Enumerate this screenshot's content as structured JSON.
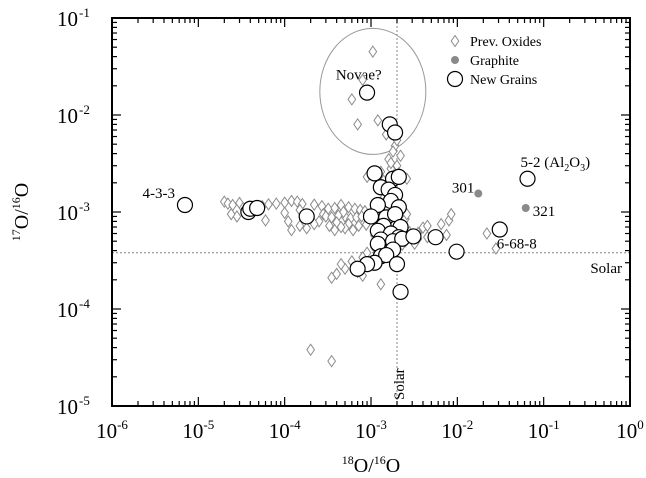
{
  "chart_data": {
    "type": "scatter",
    "x_scale": "log",
    "y_scale": "log",
    "xlim": [
      1e-06,
      1
    ],
    "ylim": [
      1e-05,
      0.1
    ],
    "xlabel": {
      "sup1": "18",
      "mid": "O/",
      "sup2": "16",
      "end": "O"
    },
    "ylabel": {
      "sup1": "17",
      "mid": "O/",
      "sup2": "16",
      "end": "O"
    },
    "x_ticks": [
      {
        "value": 1e-06,
        "base": "10",
        "exp": "-6"
      },
      {
        "value": 1e-05,
        "base": "10",
        "exp": "-5"
      },
      {
        "value": 0.0001,
        "base": "10",
        "exp": "-4"
      },
      {
        "value": 0.001,
        "base": "10",
        "exp": "-3"
      },
      {
        "value": 0.01,
        "base": "10",
        "exp": "-2"
      },
      {
        "value": 0.1,
        "base": "10",
        "exp": "-1"
      },
      {
        "value": 1,
        "base": "10",
        "exp": "0"
      }
    ],
    "y_ticks": [
      {
        "value": 1e-05,
        "base": "10",
        "exp": "-5"
      },
      {
        "value": 0.0001,
        "base": "10",
        "exp": "-4"
      },
      {
        "value": 0.001,
        "base": "10",
        "exp": "-3"
      },
      {
        "value": 0.01,
        "base": "10",
        "exp": "-2"
      },
      {
        "value": 0.1,
        "base": "10",
        "exp": "-1"
      }
    ],
    "solar": {
      "x": 0.002,
      "y": 0.00038,
      "x_label": "Solar",
      "y_label": "Solar"
    },
    "novae_region": {
      "label": "Novae?",
      "cx": 0.00105,
      "cy": 0.0175
    },
    "legend": [
      {
        "key": "prev",
        "label": "Prev. Oxides",
        "marker": "diamond"
      },
      {
        "key": "graphite",
        "label": "Graphite",
        "marker": "dot"
      },
      {
        "key": "new",
        "label": "New Grains",
        "marker": "circle"
      }
    ],
    "series": [
      {
        "key": "new",
        "name": "New Grains",
        "points": [
          [
            7e-06,
            0.00118
          ],
          [
            3.8e-05,
            0.001
          ],
          [
            4e-05,
            0.00108
          ],
          [
            4.8e-05,
            0.0011
          ],
          [
            0.00018,
            0.0009
          ],
          [
            0.0009,
            0.017
          ],
          [
            0.00165,
            0.008
          ],
          [
            0.0019,
            0.0066
          ],
          [
            0.0011,
            0.0025
          ],
          [
            0.0018,
            0.0022
          ],
          [
            0.0021,
            0.0023
          ],
          [
            0.0013,
            0.0018
          ],
          [
            0.0016,
            0.0017
          ],
          [
            0.0019,
            0.0015
          ],
          [
            0.0017,
            0.0013
          ],
          [
            0.0012,
            0.00118
          ],
          [
            0.0021,
            0.00112
          ],
          [
            0.001,
            0.0009
          ],
          [
            0.0015,
            0.00088
          ],
          [
            0.0019,
            0.00095
          ],
          [
            0.0014,
            0.00072
          ],
          [
            0.0022,
            0.0007
          ],
          [
            0.0012,
            0.00064
          ],
          [
            0.0017,
            0.0006
          ],
          [
            0.0021,
            0.00055
          ],
          [
            0.0013,
            0.00052
          ],
          [
            0.0018,
            0.0005
          ],
          [
            0.0012,
            0.00047
          ],
          [
            0.0023,
            0.00053
          ],
          [
            0.0031,
            0.00056
          ],
          [
            0.0056,
            0.00055
          ],
          [
            0.0018,
            0.00041
          ],
          [
            0.0013,
            0.00035
          ],
          [
            0.0015,
            0.00036
          ],
          [
            0.0011,
            0.0003
          ],
          [
            0.0009,
            0.00029
          ],
          [
            0.0007,
            0.00026
          ],
          [
            0.002,
            0.00029
          ],
          [
            0.0022,
            0.00015
          ],
          [
            0.0098,
            0.00039
          ],
          [
            0.031,
            0.00066
          ],
          [
            0.065,
            0.0022
          ]
        ]
      },
      {
        "key": "graphite",
        "name": "Graphite",
        "points": [
          [
            0.0175,
            0.00155
          ],
          [
            0.062,
            0.0011
          ]
        ]
      },
      {
        "key": "prev",
        "name": "Prev. Oxides",
        "points": [
          [
            0.00105,
            0.045
          ],
          [
            0.0006,
            0.0145
          ],
          [
            0.0008,
            0.023
          ],
          [
            0.0007,
            0.008
          ],
          [
            0.0012,
            0.0088
          ],
          [
            0.0015,
            0.0063
          ],
          [
            0.0019,
            0.0048
          ],
          [
            0.002,
            0.0055
          ],
          [
            0.0016,
            0.0035
          ],
          [
            0.002,
            0.003
          ],
          [
            0.0017,
            0.0028
          ],
          [
            0.0013,
            0.0026
          ],
          [
            0.0009,
            0.0023
          ],
          [
            0.0021,
            0.0025
          ],
          [
            0.0026,
            0.0022
          ],
          [
            0.0014,
            0.0021
          ],
          [
            0.0018,
            0.0019
          ],
          [
            0.0017,
            0.0032
          ],
          [
            0.0022,
            0.0038
          ],
          [
            0.0018,
            0.0042
          ],
          [
            2e-05,
            0.00128
          ],
          [
            2.2e-05,
            0.00122
          ],
          [
            2.5e-05,
            0.00118
          ],
          [
            3e-05,
            0.00124
          ],
          [
            3.3e-05,
            0.0011
          ],
          [
            2.8e-05,
            0.0009
          ],
          [
            2.4e-05,
            0.00095
          ],
          [
            5.5e-05,
            0.00115
          ],
          [
            6.5e-05,
            0.0012
          ],
          [
            8e-05,
            0.00122
          ],
          [
            0.0001,
            0.00125
          ],
          [
            0.00012,
            0.0013
          ],
          [
            0.00014,
            0.00128
          ],
          [
            0.00016,
            0.00121
          ],
          [
            0.00022,
            0.00119
          ],
          [
            0.00027,
            0.00115
          ],
          [
            0.00032,
            0.00108
          ],
          [
            0.00038,
            0.0011
          ],
          [
            0.00045,
            0.00118
          ],
          [
            0.00055,
            0.00112
          ],
          [
            0.00065,
            0.00108
          ],
          [
            0.00075,
            0.00105
          ],
          [
            0.00085,
            0.00102
          ],
          [
            0.00028,
            0.00095
          ],
          [
            0.0003,
            0.0009
          ],
          [
            0.00035,
            0.00088
          ],
          [
            0.00042,
            0.00092
          ],
          [
            0.0005,
            0.0009
          ],
          [
            0.00058,
            0.00086
          ],
          [
            0.00068,
            0.00088
          ],
          [
            0.00078,
            0.0009
          ],
          [
            0.0002,
            0.00085
          ],
          [
            0.00025,
            0.0008
          ],
          [
            0.0004,
            0.00078
          ],
          [
            0.00055,
            0.00075
          ],
          [
            0.00072,
            0.00072
          ],
          [
            0.00088,
            0.00074
          ],
          [
            0.0005,
            0.00068
          ],
          [
            0.00062,
            0.00065
          ],
          [
            0.00045,
            0.0007
          ],
          [
            0.0001,
            0.00098
          ],
          [
            0.00011,
            0.0008
          ],
          [
            6e-05,
            0.00082
          ],
          [
            0.00015,
            0.00105
          ],
          [
            0.00048,
            0.001
          ],
          [
            0.0012,
            0.00098
          ],
          [
            0.0014,
            0.0009
          ],
          [
            0.0016,
            0.0008
          ],
          [
            0.0015,
            0.0012
          ],
          [
            0.0014,
            0.0014
          ],
          [
            0.0016,
            0.0016
          ],
          [
            0.0019,
            0.0013
          ],
          [
            0.0015,
            0.0011
          ],
          [
            0.0018,
            0.001
          ],
          [
            0.0022,
            0.0009
          ],
          [
            0.0025,
            0.00085
          ],
          [
            0.0026,
            0.00095
          ],
          [
            0.0021,
            0.00078
          ],
          [
            0.0012,
            0.00068
          ],
          [
            0.0013,
            0.0006
          ],
          [
            0.0016,
            0.00064
          ],
          [
            0.0011,
            0.00057
          ],
          [
            0.0014,
            0.00055
          ],
          [
            0.0015,
            0.0005
          ],
          [
            0.0013,
            0.00046
          ],
          [
            0.0015,
            0.00044
          ],
          [
            0.0019,
            0.00046
          ],
          [
            0.0011,
            0.00043
          ],
          [
            0.0012,
            0.0004
          ],
          [
            0.0016,
            0.0004
          ],
          [
            0.0017,
            0.00037
          ],
          [
            0.0009,
            0.00038
          ],
          [
            0.0008,
            0.00034
          ],
          [
            0.0006,
            0.00031
          ],
          [
            0.0005,
            0.00026
          ],
          [
            0.0007,
            0.00024
          ],
          [
            0.0004,
            0.00023
          ],
          [
            0.00045,
            0.00029
          ],
          [
            0.0008,
            0.00022
          ],
          [
            0.0013,
            0.00018
          ],
          [
            0.00035,
            0.00021
          ],
          [
            0.0028,
            0.00062
          ],
          [
            0.0035,
            0.00061
          ],
          [
            0.004,
            0.00069
          ],
          [
            0.0045,
            0.00072
          ],
          [
            0.0028,
            0.00058
          ],
          [
            0.0025,
            0.0005
          ],
          [
            0.0035,
            0.00053
          ],
          [
            0.0045,
            0.00055
          ],
          [
            0.0032,
            0.00047
          ],
          [
            0.0023,
            0.00046
          ],
          [
            0.008,
            0.00082
          ],
          [
            0.0085,
            0.00095
          ],
          [
            0.0075,
            0.00058
          ],
          [
            0.0065,
            0.00075
          ],
          [
            0.028,
            0.00042
          ],
          [
            0.022,
            0.0006
          ],
          [
            0.00018,
            0.00068
          ],
          [
            0.00022,
            0.00075
          ],
          [
            0.00012,
            0.00065
          ],
          [
            0.00015,
            0.00072
          ],
          [
            0.00033,
            0.00072
          ],
          [
            0.00038,
            0.00065
          ],
          [
            0.0002,
            3.8e-05
          ],
          [
            0.00035,
            2.9e-05
          ]
        ]
      }
    ],
    "annotations": [
      {
        "text": "4-3-3",
        "x": 7e-06,
        "y": 0.00118
      },
      {
        "text": "301",
        "x": 0.0175,
        "y": 0.00155
      },
      {
        "text": "321",
        "x": 0.062,
        "y": 0.0011
      },
      {
        "text": "6-68-8",
        "x": 0.031,
        "y": 0.00066
      },
      {
        "text": "5-2 (Al",
        "sub1": "2",
        "mid": "O",
        "sub2": "3",
        "end": ")",
        "x": 0.065,
        "y": 0.0022
      }
    ]
  }
}
